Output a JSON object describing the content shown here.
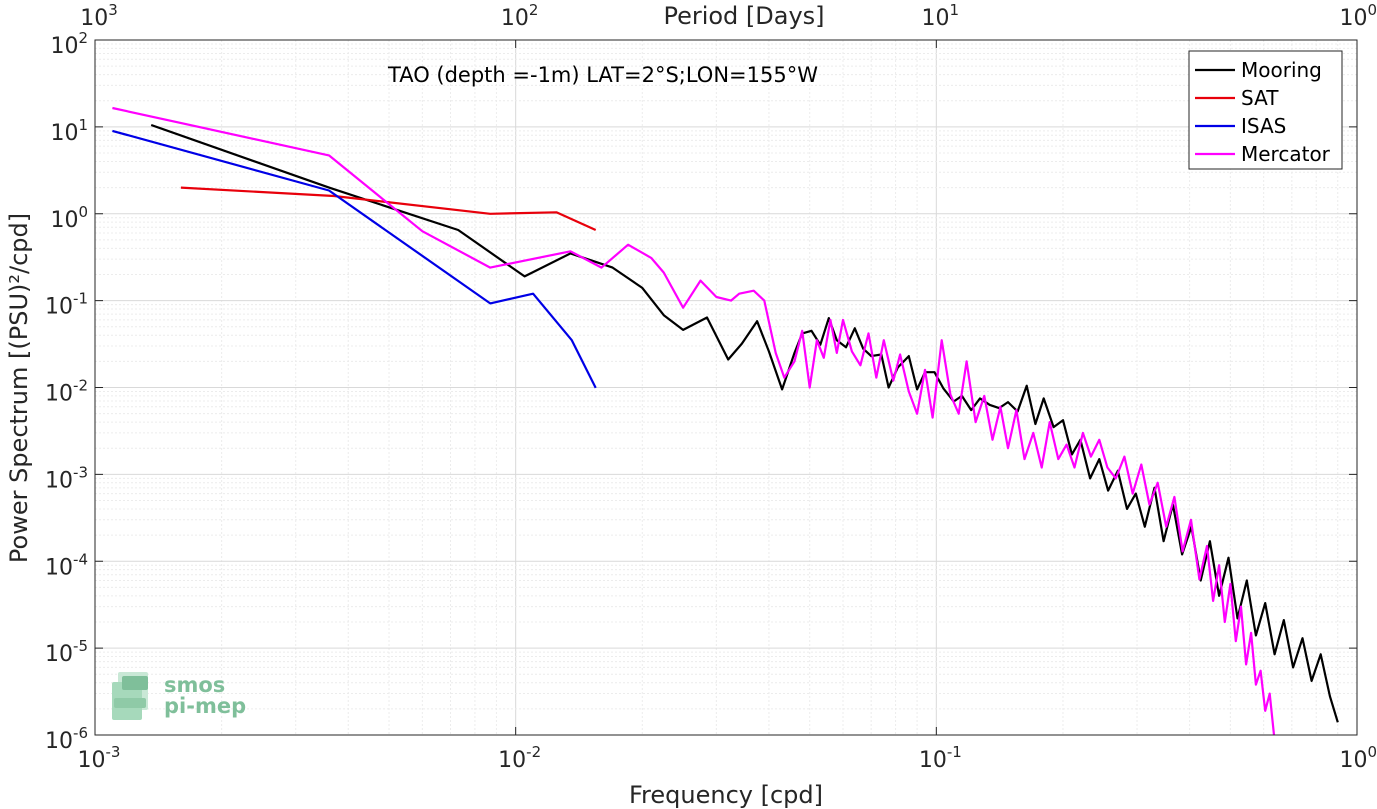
{
  "chart_data": {
    "type": "line",
    "title": "TAO (depth =-1m) LAT=2°S;LON=155°W",
    "xlabel": "Frequency [cpd]",
    "ylabel": "Power Spectrum [(PSU)²/cpd]",
    "top_xlabel": "Period [Days]",
    "x_scale": "log",
    "y_scale": "log",
    "xlim": [
      0.001,
      1
    ],
    "ylim": [
      1e-06,
      100
    ],
    "grid": true,
    "legend_position": "top-right",
    "x_ticks": [
      {
        "value": 0.001,
        "base": "10",
        "exp": "-3"
      },
      {
        "value": 0.01,
        "base": "10",
        "exp": "-2"
      },
      {
        "value": 0.1,
        "base": "10",
        "exp": "-1"
      },
      {
        "value": 1,
        "base": "10",
        "exp": "0"
      }
    ],
    "top_ticks": [
      {
        "value": 0.001,
        "base": "10",
        "exp": "3"
      },
      {
        "value": 0.01,
        "base": "10",
        "exp": "2"
      },
      {
        "value": 0.1,
        "base": "10",
        "exp": "1"
      },
      {
        "value": 1,
        "base": "10",
        "exp": "0"
      }
    ],
    "y_ticks": [
      {
        "value": 100,
        "base": "10",
        "exp": "2"
      },
      {
        "value": 10,
        "base": "10",
        "exp": "1"
      },
      {
        "value": 1,
        "base": "10",
        "exp": "0"
      },
      {
        "value": 0.1,
        "base": "10",
        "exp": "-1"
      },
      {
        "value": 0.01,
        "base": "10",
        "exp": "-2"
      },
      {
        "value": 0.001,
        "base": "10",
        "exp": "-3"
      },
      {
        "value": 0.0001,
        "base": "10",
        "exp": "-4"
      },
      {
        "value": 1e-05,
        "base": "10",
        "exp": "-5"
      },
      {
        "value": 1e-06,
        "base": "10",
        "exp": "-6"
      }
    ],
    "series": [
      {
        "name": "Mooring",
        "color": "#000000",
        "points": [
          [
            0.00136,
            10.5
          ],
          [
            0.0036,
            2.0
          ],
          [
            0.0073,
            0.65
          ],
          [
            0.0105,
            0.19
          ],
          [
            0.0135,
            0.35
          ],
          [
            0.017,
            0.24
          ],
          [
            0.02,
            0.14
          ],
          [
            0.0225,
            0.068
          ],
          [
            0.025,
            0.046
          ],
          [
            0.0285,
            0.064
          ],
          [
            0.032,
            0.021
          ],
          [
            0.0345,
            0.032
          ],
          [
            0.0375,
            0.058
          ],
          [
            0.04,
            0.026
          ],
          [
            0.043,
            0.0095
          ],
          [
            0.046,
            0.025
          ],
          [
            0.048,
            0.042
          ],
          [
            0.0505,
            0.045
          ],
          [
            0.053,
            0.031
          ],
          [
            0.0555,
            0.063
          ],
          [
            0.058,
            0.035
          ],
          [
            0.061,
            0.029
          ],
          [
            0.064,
            0.048
          ],
          [
            0.067,
            0.028
          ],
          [
            0.07,
            0.023
          ],
          [
            0.074,
            0.024
          ],
          [
            0.077,
            0.01
          ],
          [
            0.081,
            0.017
          ],
          [
            0.086,
            0.023
          ],
          [
            0.09,
            0.0095
          ],
          [
            0.094,
            0.015
          ],
          [
            0.099,
            0.015
          ],
          [
            0.104,
            0.0097
          ],
          [
            0.11,
            0.0069
          ],
          [
            0.115,
            0.008
          ],
          [
            0.121,
            0.0055
          ],
          [
            0.127,
            0.0075
          ],
          [
            0.134,
            0.0063
          ],
          [
            0.141,
            0.0058
          ],
          [
            0.148,
            0.0068
          ],
          [
            0.156,
            0.0053
          ],
          [
            0.164,
            0.0105
          ],
          [
            0.172,
            0.0038
          ],
          [
            0.18,
            0.0075
          ],
          [
            0.19,
            0.0035
          ],
          [
            0.2,
            0.0042
          ],
          [
            0.21,
            0.0017
          ],
          [
            0.22,
            0.0025
          ],
          [
            0.232,
            0.0009
          ],
          [
            0.244,
            0.0015
          ],
          [
            0.256,
            0.00065
          ],
          [
            0.27,
            0.0011
          ],
          [
            0.284,
            0.0004
          ],
          [
            0.298,
            0.0006
          ],
          [
            0.313,
            0.00025
          ],
          [
            0.33,
            0.0007
          ],
          [
            0.347,
            0.00017
          ],
          [
            0.365,
            0.00045
          ],
          [
            0.384,
            0.00012
          ],
          [
            0.404,
            0.00025
          ],
          [
            0.425,
            6e-05
          ],
          [
            0.447,
            0.00017
          ],
          [
            0.47,
            4e-05
          ],
          [
            0.495,
            0.00011
          ],
          [
            0.52,
            2.2e-05
          ],
          [
            0.547,
            6e-05
          ],
          [
            0.575,
            1.4e-05
          ],
          [
            0.605,
            3.3e-05
          ],
          [
            0.637,
            8.5e-06
          ],
          [
            0.67,
            2.1e-05
          ],
          [
            0.705,
            6e-06
          ],
          [
            0.742,
            1.3e-05
          ],
          [
            0.78,
            4.2e-06
          ],
          [
            0.82,
            8.5e-06
          ],
          [
            0.862,
            2.8e-06
          ],
          [
            0.9,
            1.4e-06
          ]
        ]
      },
      {
        "name": "SAT",
        "color": "#e8000b",
        "points": [
          [
            0.0016,
            2.0
          ],
          [
            0.0037,
            1.6
          ],
          [
            0.0087,
            1.0
          ],
          [
            0.0125,
            1.04
          ],
          [
            0.0155,
            0.65
          ]
        ]
      },
      {
        "name": "ISAS",
        "color": "#0000e6",
        "points": [
          [
            0.0011,
            9.0
          ],
          [
            0.0036,
            1.85
          ],
          [
            0.0087,
            0.093
          ],
          [
            0.011,
            0.12
          ],
          [
            0.0136,
            0.035
          ],
          [
            0.0155,
            0.0099
          ]
        ]
      },
      {
        "name": "Mercator",
        "color": "#ff00ff",
        "points": [
          [
            0.0011,
            16.5
          ],
          [
            0.0036,
            4.7
          ],
          [
            0.006,
            0.63
          ],
          [
            0.0087,
            0.24
          ],
          [
            0.0135,
            0.37
          ],
          [
            0.016,
            0.24
          ],
          [
            0.0185,
            0.44
          ],
          [
            0.021,
            0.31
          ],
          [
            0.0225,
            0.21
          ],
          [
            0.025,
            0.083
          ],
          [
            0.0275,
            0.17
          ],
          [
            0.03,
            0.11
          ],
          [
            0.0325,
            0.1
          ],
          [
            0.034,
            0.12
          ],
          [
            0.0368,
            0.13
          ],
          [
            0.039,
            0.1
          ],
          [
            0.0415,
            0.025
          ],
          [
            0.0435,
            0.013
          ],
          [
            0.046,
            0.02
          ],
          [
            0.048,
            0.045
          ],
          [
            0.05,
            0.01
          ],
          [
            0.052,
            0.035
          ],
          [
            0.054,
            0.022
          ],
          [
            0.056,
            0.06
          ],
          [
            0.058,
            0.025
          ],
          [
            0.06,
            0.06
          ],
          [
            0.063,
            0.026
          ],
          [
            0.066,
            0.018
          ],
          [
            0.069,
            0.042
          ],
          [
            0.072,
            0.013
          ],
          [
            0.075,
            0.035
          ],
          [
            0.079,
            0.012
          ],
          [
            0.082,
            0.024
          ],
          [
            0.086,
            0.009
          ],
          [
            0.09,
            0.005
          ],
          [
            0.094,
            0.016
          ],
          [
            0.098,
            0.0045
          ],
          [
            0.103,
            0.035
          ],
          [
            0.108,
            0.0083
          ],
          [
            0.113,
            0.005
          ],
          [
            0.118,
            0.02
          ],
          [
            0.124,
            0.004
          ],
          [
            0.13,
            0.008
          ],
          [
            0.136,
            0.0025
          ],
          [
            0.142,
            0.006
          ],
          [
            0.148,
            0.002
          ],
          [
            0.155,
            0.0055
          ],
          [
            0.162,
            0.0015
          ],
          [
            0.17,
            0.003
          ],
          [
            0.178,
            0.0012
          ],
          [
            0.186,
            0.004
          ],
          [
            0.195,
            0.0015
          ],
          [
            0.204,
            0.0022
          ],
          [
            0.213,
            0.0012
          ],
          [
            0.223,
            0.003
          ],
          [
            0.233,
            0.0016
          ],
          [
            0.244,
            0.0025
          ],
          [
            0.255,
            0.0012
          ],
          [
            0.267,
            0.0009
          ],
          [
            0.28,
            0.0016
          ],
          [
            0.293,
            0.0006
          ],
          [
            0.307,
            0.0013
          ],
          [
            0.321,
            0.00045
          ],
          [
            0.336,
            0.0008
          ],
          [
            0.352,
            0.00025
          ],
          [
            0.368,
            0.00055
          ],
          [
            0.385,
            0.00013
          ],
          [
            0.403,
            0.0003
          ],
          [
            0.422,
            6.2e-05
          ],
          [
            0.44,
            0.00015
          ],
          [
            0.455,
            3.5e-05
          ],
          [
            0.47,
            9e-05
          ],
          [
            0.485,
            2e-05
          ],
          [
            0.5,
            5.5e-05
          ],
          [
            0.515,
            1.2e-05
          ],
          [
            0.53,
            3e-05
          ],
          [
            0.545,
            6.5e-06
          ],
          [
            0.56,
            1.5e-05
          ],
          [
            0.575,
            3.8e-06
          ],
          [
            0.59,
            5.5e-06
          ],
          [
            0.605,
            1.9e-06
          ],
          [
            0.62,
            3e-06
          ],
          [
            0.635,
            1e-06
          ]
        ]
      }
    ]
  },
  "logo": {
    "line1": "smos",
    "line2": "pi-mep",
    "color": "#7fbf9a"
  }
}
